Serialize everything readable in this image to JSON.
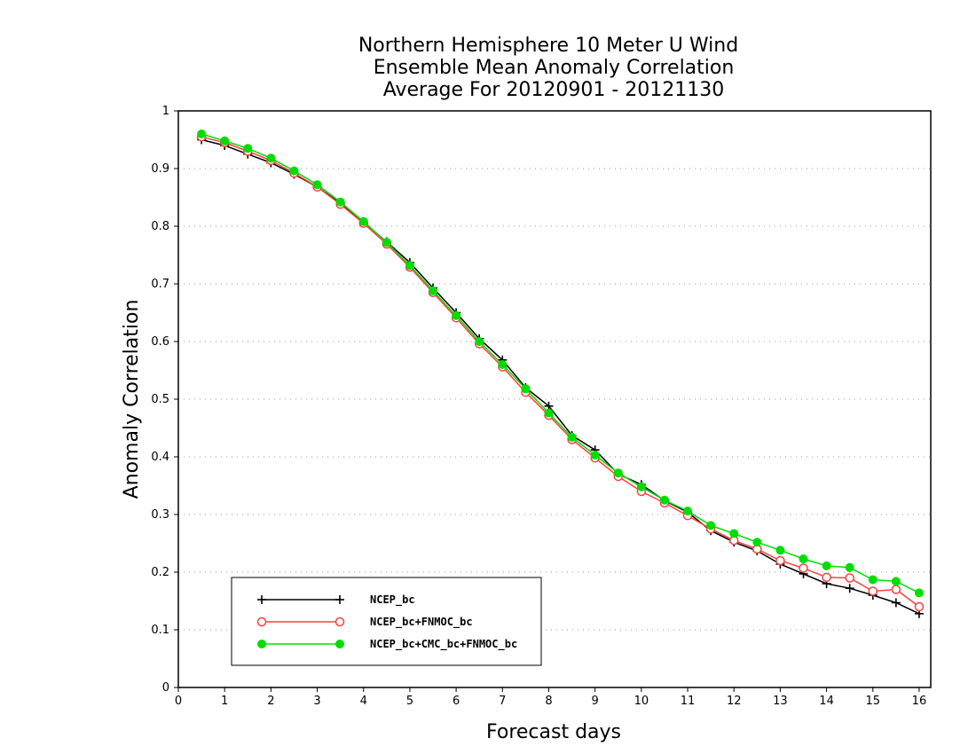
{
  "chart_data": {
    "type": "line",
    "title_lines": [
      "Northern Hemisphere 10 Meter U Wind",
      "Ensemble Mean Anomaly Correlation",
      "Average For 20120901 - 20121130"
    ],
    "xlabel": "Forecast days",
    "ylabel": "Anomaly Correlation",
    "xlim": [
      0,
      16.25
    ],
    "ylim": [
      0,
      1
    ],
    "x_ticks": [
      "0",
      "1",
      "2",
      "3",
      "4",
      "5",
      "6",
      "7",
      "8",
      "9",
      "10",
      "11",
      "12",
      "13",
      "14",
      "15",
      "16"
    ],
    "y_ticks": [
      "0",
      "0.1",
      "0.2",
      "0.3",
      "0.4",
      "0.5",
      "0.6",
      "0.7",
      "0.8",
      "0.9",
      "1"
    ],
    "grid": "horizontal dotted",
    "legend_position": "bottom-left",
    "x": [
      0.5,
      1.0,
      1.5,
      2.0,
      2.5,
      3.0,
      3.5,
      4.0,
      4.5,
      5.0,
      5.5,
      6.0,
      6.5,
      7.0,
      7.5,
      8.0,
      8.5,
      9.0,
      9.5,
      10.0,
      10.5,
      11.0,
      11.5,
      12.0,
      12.5,
      13.0,
      13.5,
      14.0,
      14.5,
      15.0,
      15.5,
      16.0
    ],
    "series": [
      {
        "name": "NCEP_bc",
        "color": "#000000",
        "marker": "plus",
        "values": [
          0.95,
          0.94,
          0.925,
          0.91,
          0.89,
          0.868,
          0.84,
          0.806,
          0.773,
          0.737,
          0.693,
          0.65,
          0.605,
          0.568,
          0.52,
          0.488,
          0.437,
          0.412,
          0.37,
          0.352,
          0.324,
          0.304,
          0.272,
          0.252,
          0.237,
          0.214,
          0.197,
          0.18,
          0.172,
          0.16,
          0.147,
          0.128
        ]
      },
      {
        "name": "NCEP_bc+FNMOC_bc",
        "color": "#ff4040",
        "marker": "open-circle",
        "values": [
          0.955,
          0.945,
          0.93,
          0.914,
          0.892,
          0.868,
          0.838,
          0.805,
          0.769,
          0.729,
          0.685,
          0.641,
          0.596,
          0.556,
          0.512,
          0.472,
          0.43,
          0.398,
          0.366,
          0.34,
          0.32,
          0.298,
          0.275,
          0.255,
          0.24,
          0.22,
          0.207,
          0.191,
          0.19,
          0.167,
          0.17,
          0.14
        ]
      },
      {
        "name": "NCEP_bc+CMC_bc+FNMOC_bc",
        "color": "#00dd00",
        "marker": "filled-circle",
        "values": [
          0.96,
          0.948,
          0.935,
          0.918,
          0.896,
          0.872,
          0.842,
          0.808,
          0.772,
          0.732,
          0.688,
          0.645,
          0.6,
          0.56,
          0.518,
          0.476,
          0.434,
          0.403,
          0.372,
          0.348,
          0.325,
          0.306,
          0.281,
          0.267,
          0.252,
          0.238,
          0.223,
          0.211,
          0.208,
          0.187,
          0.184,
          0.164
        ]
      }
    ]
  }
}
